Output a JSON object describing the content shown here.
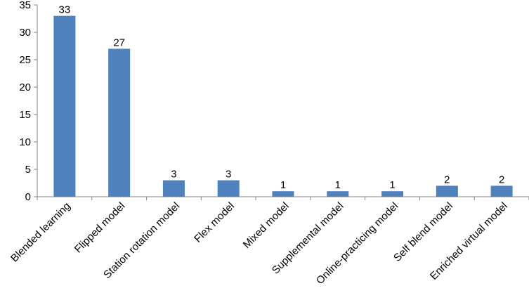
{
  "chart_data": {
    "type": "bar",
    "title": "",
    "xlabel": "",
    "ylabel": "",
    "categories": [
      "Blended learning",
      "Flipped model",
      "Station rotation model",
      "Flex model",
      "Mixed model",
      "Supplemental model",
      "Online-practicing model",
      "Self blend model",
      "Enriched virtual model"
    ],
    "values": [
      33,
      27,
      3,
      3,
      1,
      1,
      1,
      2,
      2
    ],
    "ylim": [
      0,
      35
    ],
    "yticks": [
      0,
      5,
      10,
      15,
      20,
      25,
      30,
      35
    ],
    "bar_color": "#4F81BD",
    "grid": false,
    "legend": "none",
    "data_labels": true,
    "x_label_rotation": -45
  }
}
